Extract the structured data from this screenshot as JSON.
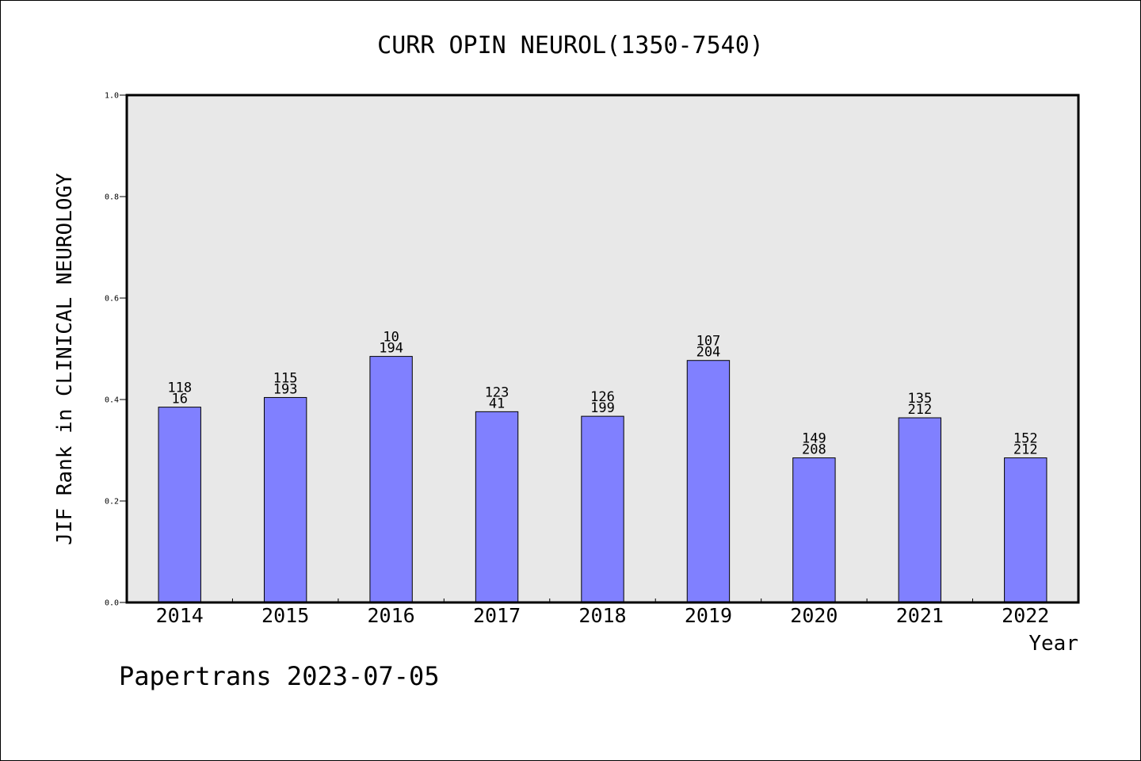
{
  "chart_data": {
    "type": "bar",
    "title": "CURR OPIN NEUROL(1350-7540)",
    "xlabel": "Year",
    "ylabel": "JIF Rank in CLINICAL NEUROLOGY",
    "ylim": [
      0,
      1.0
    ],
    "yticks": [
      "0.0",
      "0.2",
      "0.4",
      "0.6",
      "0.8",
      "1.0"
    ],
    "grid": false,
    "categories": [
      "2014",
      "2015",
      "2016",
      "2017",
      "2018",
      "2019",
      "2020",
      "2021",
      "2022"
    ],
    "values": [
      0.385,
      0.404,
      0.485,
      0.376,
      0.367,
      0.477,
      0.285,
      0.364,
      0.285
    ],
    "labels_top": [
      "118",
      "115",
      "10",
      "123",
      "126",
      "107",
      "149",
      "135",
      "152"
    ],
    "labels_bottom": [
      "16",
      "193",
      "194",
      "41",
      "199",
      "204",
      "208",
      "212",
      "212"
    ],
    "bar_color": "#8080ff",
    "plot_bg": "#e8e8e8"
  },
  "footer": {
    "credit": "Papertrans 2023-07-05"
  }
}
